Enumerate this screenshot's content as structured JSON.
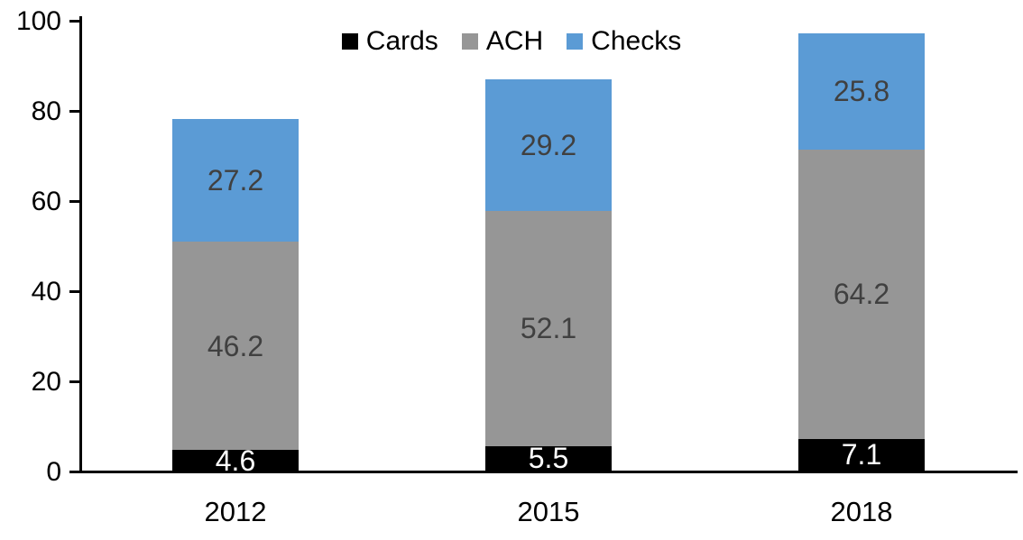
{
  "chart_data": {
    "type": "bar",
    "stacked": true,
    "categories": [
      "2012",
      "2015",
      "2018"
    ],
    "series": [
      {
        "name": "Cards",
        "values": [
          4.6,
          5.5,
          7.1
        ],
        "color": "#000000",
        "label_color": "#ffffff"
      },
      {
        "name": "ACH",
        "values": [
          46.2,
          52.1,
          64.2
        ],
        "color": "#969696",
        "label_color": "#404040"
      },
      {
        "name": "Checks",
        "values": [
          27.2,
          29.2,
          25.8
        ],
        "color": "#5b9bd5",
        "label_color": "#404040"
      }
    ],
    "ylim": [
      0,
      100
    ],
    "yticks": [
      0,
      20,
      40,
      60,
      80,
      100
    ],
    "grid": false,
    "legend_position": "top-center",
    "axis_color": "#000000",
    "bar_totals": [
      78.0,
      86.8,
      97.1
    ]
  }
}
